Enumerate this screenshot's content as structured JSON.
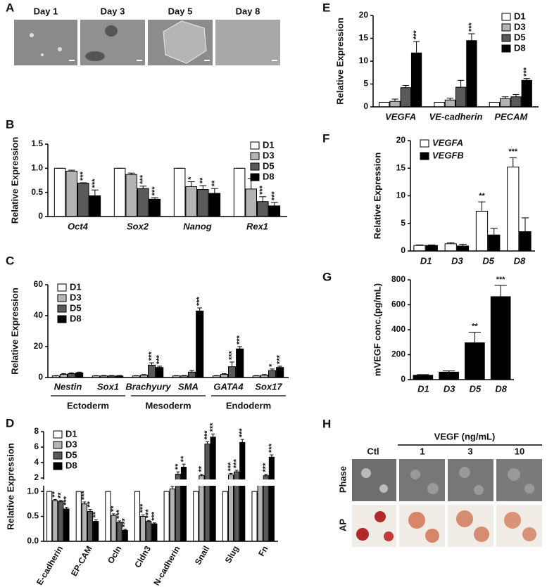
{
  "panels": {
    "A": {
      "letter": "A",
      "labels": [
        "Day 1",
        "Day 3",
        "Day 5",
        "Day 8"
      ]
    },
    "H": {
      "letter": "H",
      "title": "VEGF (ng/mL)",
      "columns": [
        "Ctl",
        "1",
        "3",
        "10"
      ],
      "rows": [
        "Phase",
        "AP"
      ]
    }
  },
  "chart_data": [
    {
      "type": "bar",
      "panel": "B",
      "ylabel": "Relative Expression",
      "categories": [
        "Oct4",
        "Sox2",
        "Nanog",
        "Rex1"
      ],
      "series": [
        {
          "name": "D1",
          "color": "#ffffff",
          "values": [
            1,
            1,
            1,
            1
          ],
          "errors": [
            0,
            0,
            0,
            0
          ],
          "labels": [
            null,
            null,
            null,
            null
          ]
        },
        {
          "name": "D3",
          "color": "#b4b4b4",
          "values": [
            0.94,
            0.87,
            0.62,
            0.57
          ],
          "errors": [
            0.02,
            0.03,
            0.1,
            0.22
          ],
          "labels": [
            null,
            null,
            "*",
            null
          ]
        },
        {
          "name": "D5",
          "color": "#5a5a5a",
          "values": [
            0.69,
            0.58,
            0.56,
            0.31
          ],
          "errors": [
            0.01,
            0.05,
            0.08,
            0.1
          ],
          "labels": [
            "***",
            "***",
            "**",
            "***"
          ]
        },
        {
          "name": "D8",
          "color": "#000000",
          "values": [
            0.43,
            0.36,
            0.48,
            0.22
          ],
          "errors": [
            0.12,
            0.03,
            0.1,
            0.07
          ],
          "labels": [
            "***",
            "***",
            "**",
            "***"
          ]
        }
      ],
      "ylim": [
        0,
        1.5
      ],
      "yticks": [
        0,
        0.5,
        {
          "value": 1,
          "label": "1.0"
        },
        1.5
      ],
      "legend": "top-right"
    },
    {
      "type": "bar",
      "panel": "C",
      "ylabel": "Relative Expression",
      "categories": [
        "Nestin",
        "Sox1",
        "Brachyury",
        "SMA",
        "GATA4",
        "Sox17"
      ],
      "series": [
        {
          "name": "D1",
          "color": "#ffffff",
          "values": [
            1,
            1,
            1,
            1,
            1,
            1
          ],
          "errors": [
            0.2,
            0.2,
            0.2,
            0.2,
            0.2,
            0.2
          ],
          "labels": [
            null,
            null,
            null,
            null,
            null,
            null
          ]
        },
        {
          "name": "D3",
          "color": "#b4b4b4",
          "values": [
            2,
            1,
            1.5,
            1,
            2,
            1.5
          ],
          "errors": [
            0.5,
            0.3,
            0.4,
            0.3,
            0.5,
            0.4
          ],
          "labels": [
            null,
            null,
            null,
            null,
            null,
            null
          ]
        },
        {
          "name": "D5",
          "color": "#5a5a5a",
          "values": [
            2.5,
            1,
            8,
            3.5,
            7,
            4.5
          ],
          "errors": [
            0.5,
            0.3,
            1.5,
            1,
            3,
            1
          ],
          "labels": [
            null,
            null,
            "***",
            null,
            "***",
            "*"
          ]
        },
        {
          "name": "D8",
          "color": "#000000",
          "values": [
            3,
            1,
            6.5,
            43,
            18.5,
            6.5
          ],
          "errors": [
            0.5,
            0.3,
            0.8,
            2,
            1.5,
            0.8
          ],
          "labels": [
            null,
            null,
            "***",
            "***",
            "***",
            "***"
          ]
        }
      ],
      "groups": [
        {
          "label": "Ectoderm",
          "members": [
            "Nestin",
            "Sox1"
          ]
        },
        {
          "label": "Mesoderm",
          "members": [
            "Brachyury",
            "SMA"
          ]
        },
        {
          "label": "Endoderm",
          "members": [
            "GATA4",
            "Sox17"
          ]
        }
      ],
      "ylim": [
        0,
        60
      ],
      "yticks": [
        0,
        20,
        40,
        60
      ],
      "legend": "top-left"
    },
    {
      "type": "bar",
      "panel": "D",
      "ylabel": "Relative Expression",
      "categories": [
        "E-cadherin",
        "EP-CAM",
        "Ocln",
        "Cldn3",
        "N-cadherin",
        "Snail",
        "Slug",
        "Fn"
      ],
      "series": [
        {
          "name": "D1",
          "color": "#ffffff",
          "values": [
            1,
            1,
            1,
            1,
            1,
            1,
            1,
            1
          ],
          "errors": [
            0,
            0,
            0,
            0,
            0,
            0,
            0,
            0
          ],
          "labels": [
            null,
            null,
            null,
            null,
            null,
            null,
            null,
            null
          ]
        },
        {
          "name": "D3",
          "color": "#b4b4b4",
          "values": [
            0.82,
            0.75,
            0.52,
            0.5,
            1.05,
            2.3,
            2.4,
            1.7
          ],
          "errors": [
            0.02,
            0.04,
            0.03,
            0.03,
            0.05,
            0.2,
            0.2,
            0.1
          ],
          "labels": [
            "**",
            "***",
            "**",
            "***",
            null,
            "**",
            "***",
            null
          ]
        },
        {
          "name": "D5",
          "color": "#5a5a5a",
          "values": [
            0.8,
            0.6,
            0.38,
            0.4,
            2.5,
            6.4,
            2.8,
            2.3
          ],
          "errors": [
            0.02,
            0.04,
            0.03,
            0.02,
            0.3,
            0.3,
            0.2,
            0.2
          ],
          "labels": [
            "**",
            "**",
            "***",
            "***",
            "**",
            "***",
            "***",
            "***"
          ]
        },
        {
          "name": "D8",
          "color": "#000000",
          "values": [
            0.65,
            0.4,
            0.22,
            0.35,
            3.4,
            7.3,
            6.6,
            4.7
          ],
          "errors": [
            0.03,
            0.03,
            0.02,
            0.02,
            0.4,
            0.4,
            0.4,
            0.3
          ],
          "labels": [
            "***",
            "**",
            "***",
            "***",
            "**",
            "***",
            "***",
            "***"
          ]
        }
      ],
      "ylim": [
        0,
        8
      ],
      "ybreak": [
        1.1,
        1.9
      ],
      "yticks": [
        {
          "value": 0,
          "label": "0.0"
        },
        0.5,
        {
          "value": 1,
          "label": "1.0"
        },
        2,
        4,
        6,
        8
      ],
      "legend": "top-left"
    },
    {
      "type": "bar",
      "panel": "E",
      "ylabel": "Relative Expression",
      "categories": [
        "VEGFA",
        "VE-cadherin",
        "PECAM"
      ],
      "series": [
        {
          "name": "D1",
          "color": "#ffffff",
          "values": [
            1,
            1,
            1
          ],
          "errors": [
            0,
            0,
            0
          ],
          "labels": [
            null,
            null,
            null
          ]
        },
        {
          "name": "D3",
          "color": "#b4b4b4",
          "values": [
            1.2,
            1.5,
            1.8
          ],
          "errors": [
            0.5,
            0.4,
            0.4
          ],
          "labels": [
            null,
            null,
            null
          ]
        },
        {
          "name": "D5",
          "color": "#5a5a5a",
          "values": [
            4.2,
            4.3,
            2.2
          ],
          "errors": [
            0.5,
            1.5,
            0.5
          ],
          "labels": [
            null,
            null,
            null
          ]
        },
        {
          "name": "D8",
          "color": "#000000",
          "values": [
            11.8,
            14.5,
            5.8
          ],
          "errors": [
            2.5,
            1.5,
            0.4
          ],
          "labels": [
            "***",
            "***",
            "***"
          ]
        }
      ],
      "ylim": [
        0,
        20
      ],
      "yticks": [
        0,
        5,
        10,
        15,
        20
      ],
      "legend": "top-right"
    },
    {
      "type": "bar",
      "panel": "F",
      "ylabel": "Relative Expression",
      "categories": [
        "D1",
        "D3",
        "D5",
        "D8"
      ],
      "series": [
        {
          "name": "VEGFA",
          "color": "#ffffff",
          "values": [
            1,
            1.3,
            7.2,
            15.2
          ],
          "errors": [
            0.1,
            0.2,
            1.7,
            1.7
          ],
          "labels": [
            null,
            null,
            "**",
            "***"
          ]
        },
        {
          "name": "VEGFB",
          "color": "#000000",
          "values": [
            1,
            0.9,
            2.9,
            3.5
          ],
          "errors": [
            0.1,
            0.3,
            1.2,
            2.5
          ],
          "labels": [
            null,
            null,
            null,
            null
          ]
        }
      ],
      "ylim": [
        0,
        20
      ],
      "yticks": [
        0,
        5,
        10,
        15,
        20
      ],
      "legend": "top-left"
    },
    {
      "type": "bar",
      "panel": "G",
      "ylabel": "mVEGF conc.(pg/mL)",
      "categories": [
        "D1",
        "D3",
        "D5",
        "D8"
      ],
      "series": [
        {
          "color": "#000000",
          "values": [
            35,
            60,
            295,
            665
          ],
          "errors": [
            5,
            10,
            85,
            90
          ],
          "labels": [
            null,
            null,
            "**",
            "***"
          ]
        }
      ],
      "ylim": [
        0,
        800
      ],
      "yticks": [
        0,
        200,
        400,
        600,
        800
      ]
    }
  ]
}
